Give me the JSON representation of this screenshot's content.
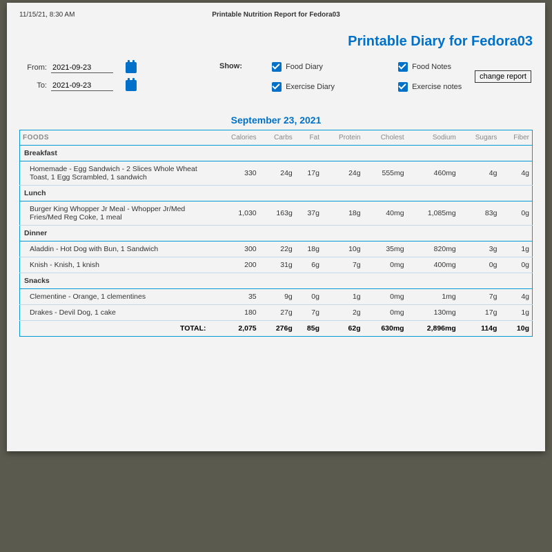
{
  "print": {
    "timestamp": "11/15/21, 8:30 AM",
    "title": "Printable Nutrition Report for Fedora03"
  },
  "page_title": "Printable Diary for Fedora03",
  "dates": {
    "from_label": "From:",
    "from_value": "2021-09-23",
    "to_label": "To:",
    "to_value": "2021-09-23"
  },
  "show": {
    "label": "Show:",
    "opts": [
      "Food Diary",
      "Food Notes",
      "Exercise Diary",
      "Exercise notes"
    ]
  },
  "change_btn": "change report",
  "table_date": "September 23, 2021",
  "columns": [
    "FOODS",
    "Calories",
    "Carbs",
    "Fat",
    "Protein",
    "Cholest",
    "Sodium",
    "Sugars",
    "Fiber"
  ],
  "sections": [
    {
      "name": "Breakfast",
      "rows": [
        {
          "food": "Homemade - Egg Sandwich - 2 Slices Whole Wheat Toast, 1 Egg Scrambled, 1 sandwich",
          "vals": [
            "330",
            "24g",
            "17g",
            "24g",
            "555mg",
            "460mg",
            "4g",
            "4g"
          ]
        }
      ]
    },
    {
      "name": "Lunch",
      "rows": [
        {
          "food": "Burger King Whopper Jr Meal - Whopper Jr/Med Fries/Med Reg Coke, 1 meal",
          "vals": [
            "1,030",
            "163g",
            "37g",
            "18g",
            "40mg",
            "1,085mg",
            "83g",
            "0g"
          ]
        }
      ]
    },
    {
      "name": "Dinner",
      "rows": [
        {
          "food": "Aladdin - Hot Dog with Bun, 1 Sandwich",
          "vals": [
            "300",
            "22g",
            "18g",
            "10g",
            "35mg",
            "820mg",
            "3g",
            "1g"
          ]
        },
        {
          "food": "Knish - Knish, 1 knish",
          "vals": [
            "200",
            "31g",
            "6g",
            "7g",
            "0mg",
            "400mg",
            "0g",
            "0g"
          ]
        }
      ]
    },
    {
      "name": "Snacks",
      "rows": [
        {
          "food": "Clementine - Orange, 1 clementines",
          "vals": [
            "35",
            "9g",
            "0g",
            "1g",
            "0mg",
            "1mg",
            "7g",
            "4g"
          ]
        },
        {
          "food": "Drakes - Devil Dog, 1 cake",
          "vals": [
            "180",
            "27g",
            "7g",
            "2g",
            "0mg",
            "130mg",
            "17g",
            "1g"
          ]
        }
      ]
    }
  ],
  "total": {
    "label": "TOTAL:",
    "vals": [
      "2,075",
      "276g",
      "85g",
      "62g",
      "630mg",
      "2,896mg",
      "114g",
      "10g"
    ]
  },
  "colors": {
    "accent": "#0070c9",
    "border": "#0099d6",
    "paper": "#f2f3f2"
  }
}
